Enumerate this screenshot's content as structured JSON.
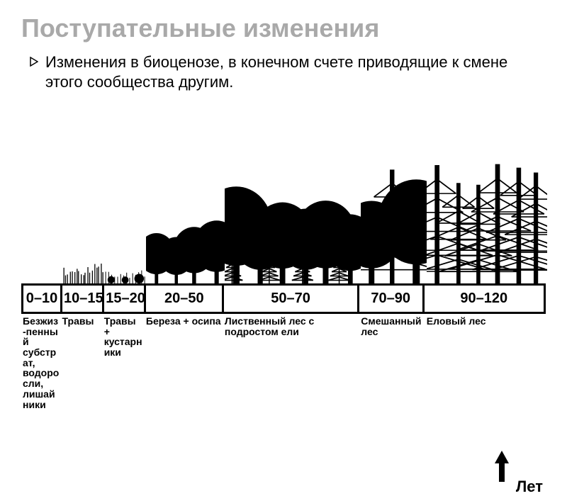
{
  "title": "Поступательные изменения",
  "title_color": "#a9a9a9",
  "title_fontsize": 36,
  "description": "Изменения в биоценозе, в конечном счете приводящие к смене этого сообщества другим.",
  "desc_color": "#000000",
  "desc_fontsize": 22,
  "bullet_color": "#000000",
  "axis_label": "Лет",
  "axis_fontsize": 22,
  "band_fontsize": 20,
  "label_fontsize": 14,
  "colors": {
    "veg": "#000000",
    "border": "#000000",
    "bg": "#ffffff"
  },
  "stages": [
    {
      "range": "0–10",
      "width_pct": 7.5,
      "label": "Безжиз-пенный субстрат, водоросли, лишайники",
      "veg": "bare"
    },
    {
      "range": "10–15",
      "width_pct": 8.0,
      "label": "Травы",
      "veg": "grass"
    },
    {
      "range": "15–20",
      "width_pct": 8.0,
      "label": "Травы + кустарники",
      "veg": "shrubs"
    },
    {
      "range": "20–50",
      "width_pct": 15.0,
      "label": "Береза + осипа",
      "veg": "birch"
    },
    {
      "range": "50–70",
      "width_pct": 26.0,
      "label": "Лиственный лес с подростом ели",
      "veg": "decid"
    },
    {
      "range": "70–90",
      "width_pct": 12.5,
      "label": "Смешанный лес",
      "veg": "mixed"
    },
    {
      "range": "90–120",
      "width_pct": 23.0,
      "label": "Еловый лес",
      "veg": "spruce"
    }
  ]
}
